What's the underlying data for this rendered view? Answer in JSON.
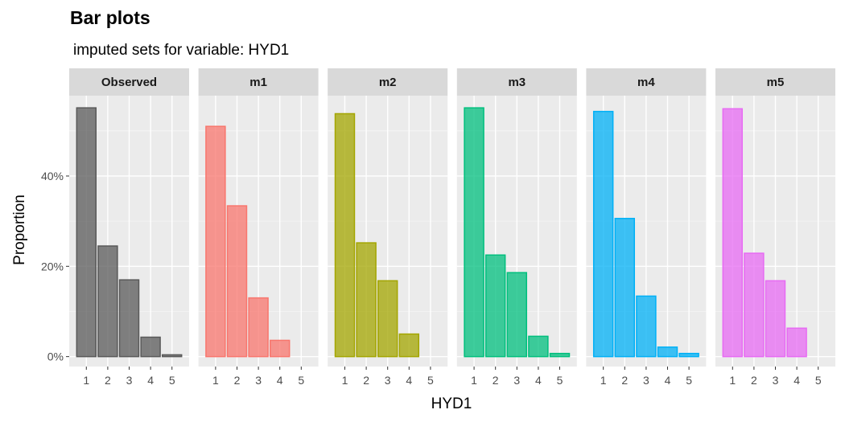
{
  "chart_data": {
    "type": "bar",
    "title": "Bar plots",
    "subtitle": "imputed sets for variable:  HYD1",
    "xlabel": "HYD1",
    "ylabel": "Proportion",
    "categories": [
      "1",
      "2",
      "3",
      "4",
      "5"
    ],
    "ylim": [
      -0.022,
      0.578
    ],
    "yticks": [
      {
        "value": 0,
        "label": "0%"
      },
      {
        "value": 0.2,
        "label": "20%"
      },
      {
        "value": 0.4,
        "label": "40%"
      }
    ],
    "grid": true,
    "legend": "none",
    "panels": [
      {
        "label": "Observed",
        "color": "#595959",
        "values": [
          0.551,
          0.245,
          0.17,
          0.043,
          0.004
        ]
      },
      {
        "label": "m1",
        "color": "#F8766D",
        "values": [
          0.51,
          0.334,
          0.13,
          0.036,
          0.0
        ]
      },
      {
        "label": "m2",
        "color": "#A3A500",
        "values": [
          0.538,
          0.252,
          0.168,
          0.05,
          0.0
        ]
      },
      {
        "label": "m3",
        "color": "#00BF7D",
        "values": [
          0.551,
          0.225,
          0.186,
          0.045,
          0.007
        ]
      },
      {
        "label": "m4",
        "color": "#00B0F6",
        "values": [
          0.543,
          0.306,
          0.134,
          0.021,
          0.007
        ]
      },
      {
        "label": "m5",
        "color": "#E76BF3",
        "values": [
          0.549,
          0.229,
          0.168,
          0.063,
          0.0
        ]
      }
    ]
  }
}
